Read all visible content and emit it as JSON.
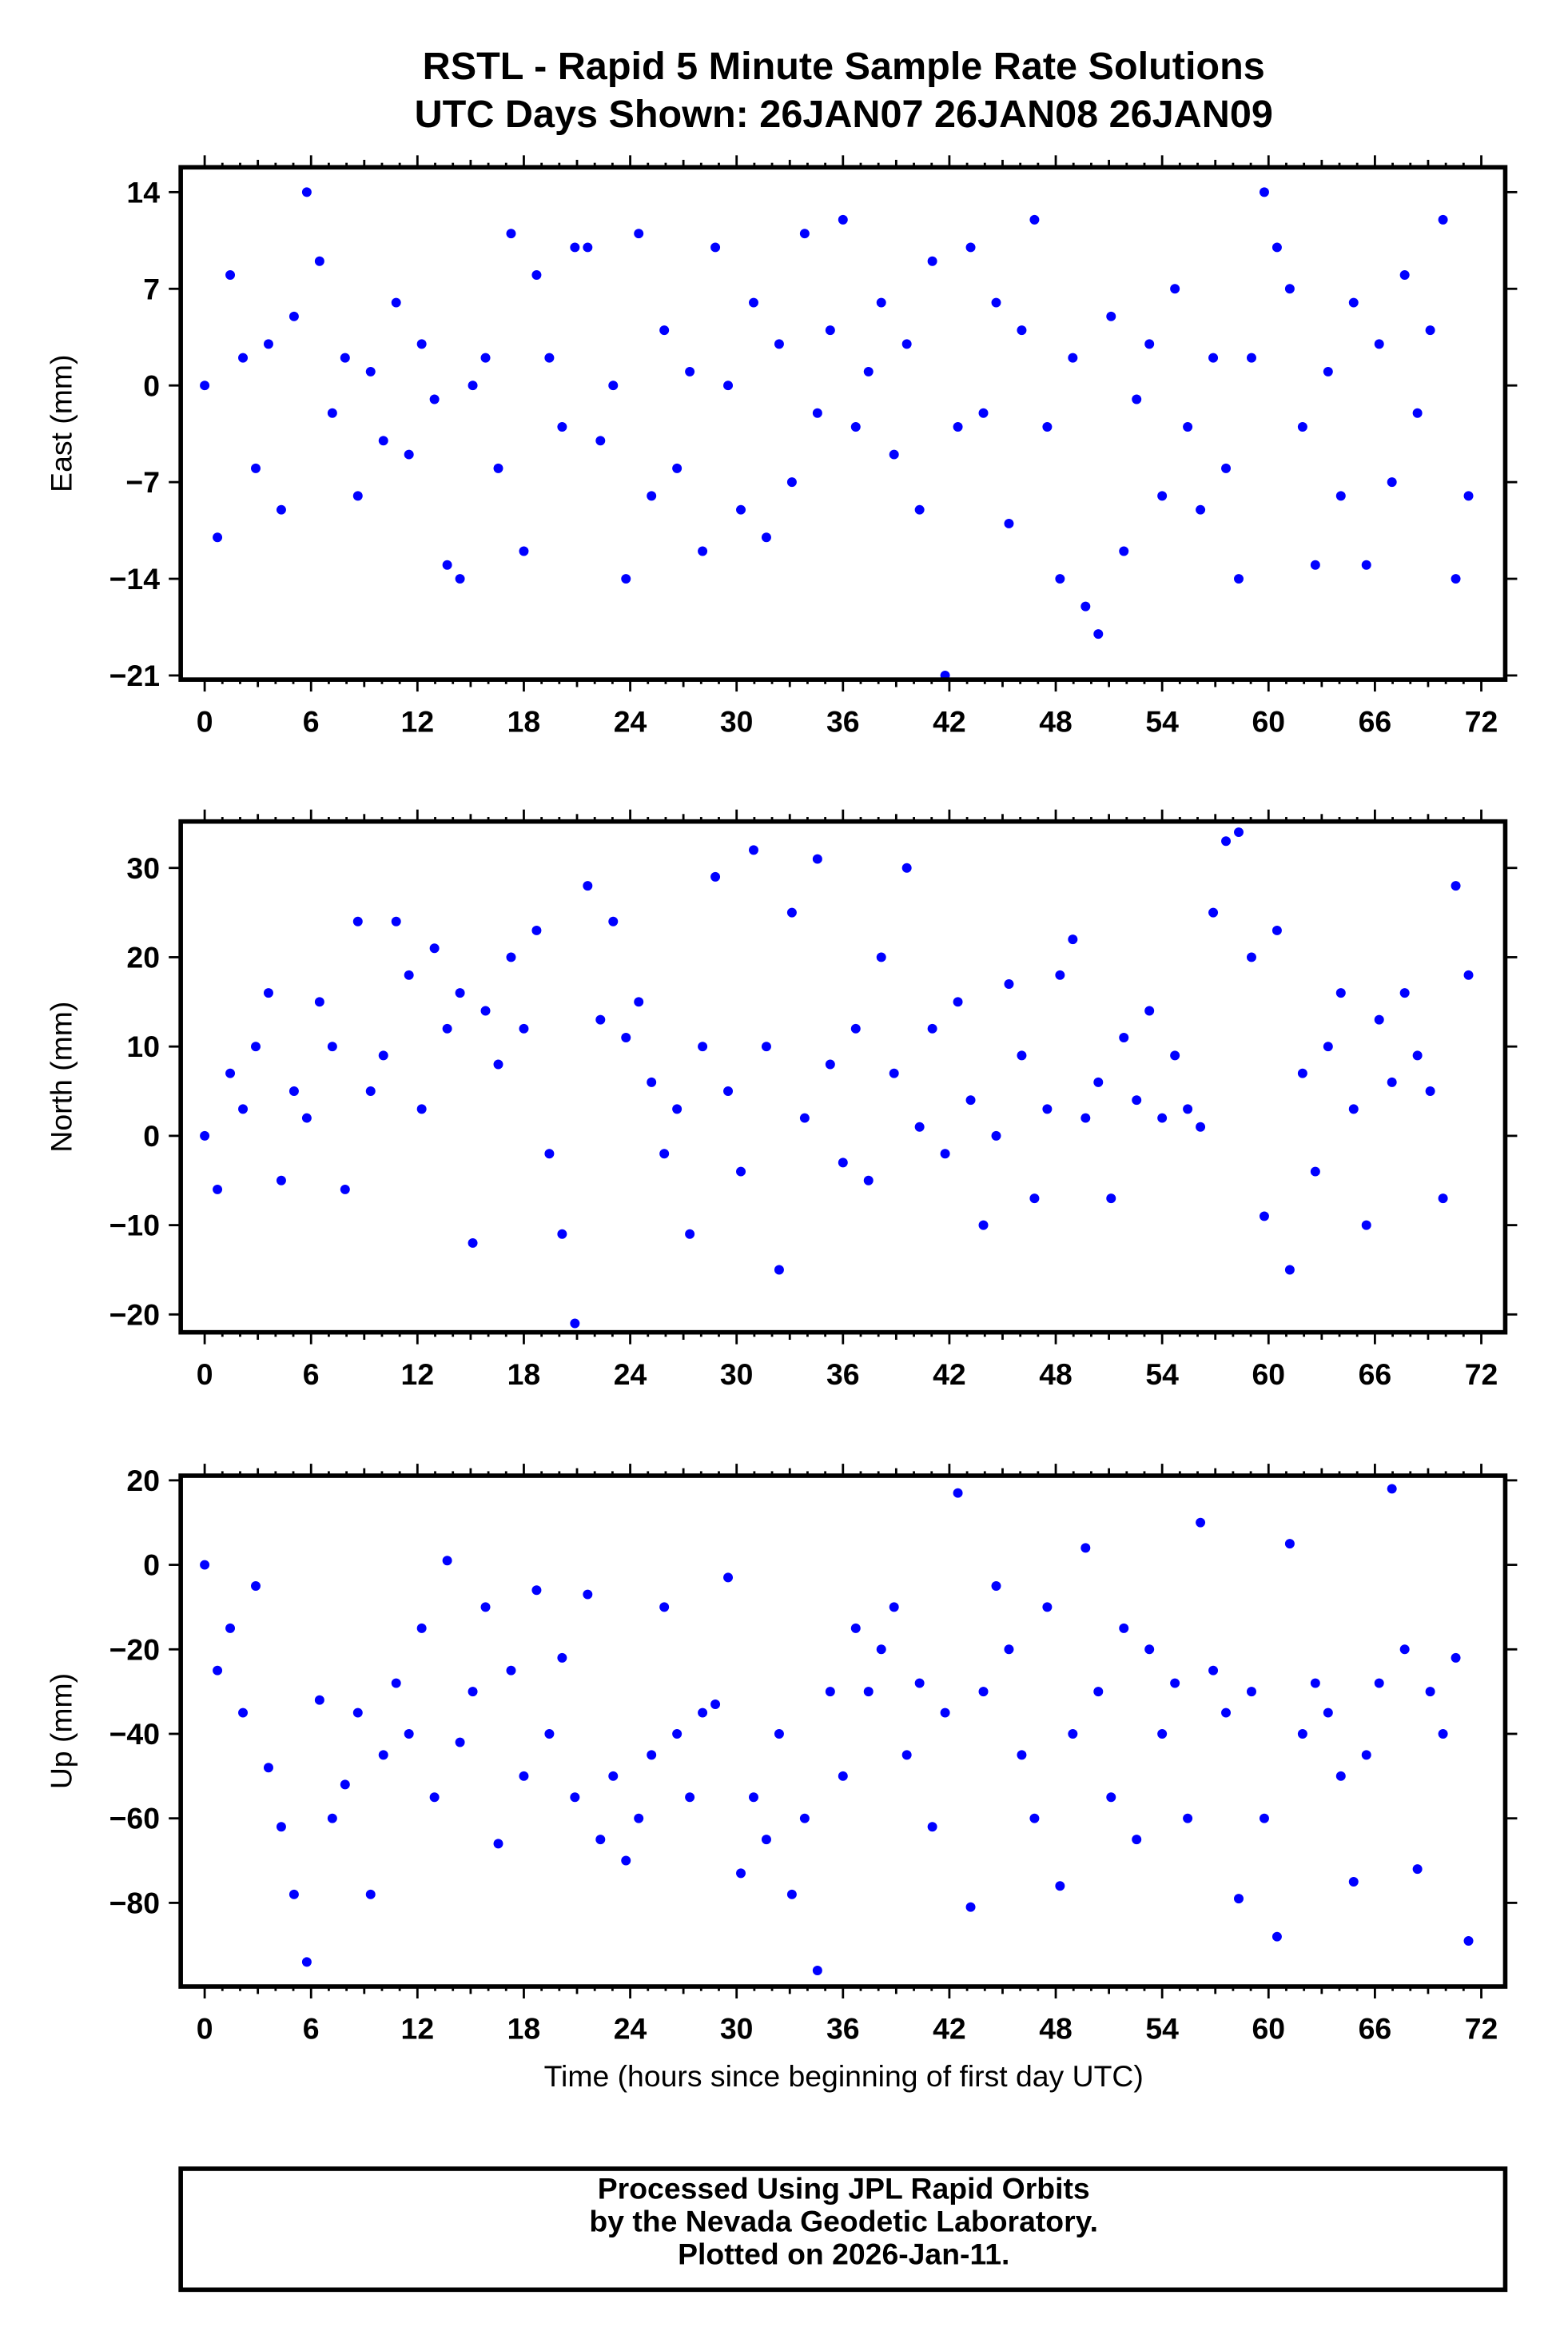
{
  "title": {
    "line1": "RSTL - Rapid 5 Minute Sample Rate Solutions",
    "line2": "UTC Days Shown:  26JAN07 26JAN08 26JAN09"
  },
  "footer": {
    "line1": "Processed Using JPL Rapid Orbits",
    "line2": "by the Nevada Geodetic Laboratory.",
    "line3": "Plotted on 2026-Jan-11."
  },
  "colors": {
    "points": "#0000ff",
    "frame": "#000000"
  },
  "chart_data": [
    {
      "type": "scatter",
      "name": "east",
      "title": "",
      "xlabel": "",
      "ylabel": "East (mm)",
      "xlim": [
        -1.35,
        73.35
      ],
      "ylim": [
        -21.3,
        15.8
      ],
      "xticks": [
        0,
        6,
        12,
        18,
        24,
        30,
        36,
        42,
        48,
        54,
        60,
        66,
        72
      ],
      "yticks": [
        14,
        7,
        0,
        -7,
        -14,
        -21
      ],
      "ytick_labels": [
        "14",
        "7",
        "0",
        "−7",
        "−14",
        "−21"
      ],
      "x_start": 0,
      "x_step": 0.72,
      "y": [
        0,
        -11,
        8,
        2,
        -6,
        3,
        -9,
        5,
        14,
        9,
        -2,
        2,
        -8,
        1,
        -4,
        6,
        -5,
        3,
        -1,
        -13,
        -14,
        0,
        2,
        -6,
        11,
        -12,
        8,
        2,
        -3,
        10,
        10,
        -4,
        0,
        -14,
        11,
        -8,
        4,
        -6,
        1,
        -12,
        10,
        0,
        -9,
        6,
        -11,
        3,
        -7,
        11,
        -2,
        4,
        12,
        -3,
        1,
        6,
        -5,
        3,
        -9,
        9,
        -21,
        -3,
        10,
        -2,
        6,
        -10,
        4,
        12,
        -3,
        -14,
        2,
        -16,
        -18,
        5,
        -12,
        -1,
        3,
        -8,
        7,
        -3,
        -9,
        2,
        -6,
        -14,
        2,
        14,
        10,
        7,
        -3,
        -13,
        1,
        -8,
        6,
        -13,
        3,
        -7,
        8,
        -2,
        4,
        12,
        -14,
        -8
      ]
    },
    {
      "type": "scatter",
      "name": "north",
      "title": "",
      "xlabel": "",
      "ylabel": "North (mm)",
      "xlim": [
        -1.35,
        73.35
      ],
      "ylim": [
        -22,
        35.2
      ],
      "xticks": [
        0,
        6,
        12,
        18,
        24,
        30,
        36,
        42,
        48,
        54,
        60,
        66,
        72
      ],
      "yticks": [
        30,
        20,
        10,
        0,
        -10,
        -20
      ],
      "ytick_labels": [
        "30",
        "20",
        "10",
        "0",
        "−10",
        "−20"
      ],
      "x_start": 0,
      "x_step": 0.72,
      "y": [
        0,
        -6,
        7,
        3,
        10,
        16,
        -5,
        5,
        2,
        15,
        10,
        -6,
        24,
        5,
        9,
        24,
        18,
        3,
        21,
        12,
        16,
        -12,
        14,
        8,
        20,
        12,
        23,
        -2,
        -11,
        -21,
        28,
        13,
        24,
        11,
        15,
        6,
        -2,
        3,
        -11,
        10,
        29,
        5,
        -4,
        32,
        10,
        -15,
        25,
        2,
        31,
        8,
        -3,
        12,
        -5,
        20,
        7,
        30,
        1,
        12,
        -2,
        15,
        4,
        -10,
        0,
        17,
        9,
        -7,
        3,
        18,
        22,
        2,
        6,
        -7,
        11,
        4,
        14,
        2,
        9,
        3,
        1,
        25,
        33,
        34,
        20,
        -9,
        23,
        -15,
        7,
        -4,
        10,
        16,
        3,
        -10,
        13,
        6,
        16,
        9,
        5,
        -7,
        28,
        18
      ]
    },
    {
      "type": "scatter",
      "name": "up",
      "title": "",
      "xlabel": "Time (hours since beginning of first day UTC)",
      "ylabel": "Up (mm)",
      "xlim": [
        -1.35,
        73.35
      ],
      "ylim": [
        -99.8,
        21.1
      ],
      "xticks": [
        0,
        6,
        12,
        18,
        24,
        30,
        36,
        42,
        48,
        54,
        60,
        66,
        72
      ],
      "yticks": [
        20,
        0,
        -20,
        -40,
        -60,
        -80
      ],
      "ytick_labels": [
        "20",
        "0",
        "−20",
        "−40",
        "−60",
        "−80"
      ],
      "x_start": 0,
      "x_step": 0.72,
      "y": [
        0,
        -25,
        -15,
        -35,
        -5,
        -48,
        -62,
        -78,
        -94,
        -32,
        -60,
        -52,
        -35,
        -78,
        -45,
        -28,
        -40,
        -15,
        -55,
        1,
        -42,
        -30,
        -10,
        -66,
        -25,
        -50,
        -6,
        -40,
        -22,
        -55,
        -7,
        -65,
        -50,
        -70,
        -60,
        -45,
        -10,
        -40,
        -55,
        -35,
        -33,
        -3,
        -73,
        -55,
        -65,
        -40,
        -78,
        -60,
        -96,
        -30,
        -50,
        -15,
        -30,
        -20,
        -10,
        -45,
        -28,
        -62,
        -35,
        17,
        -81,
        -30,
        -5,
        -20,
        -45,
        -60,
        -10,
        -76,
        -40,
        4,
        -30,
        -55,
        -15,
        -65,
        -20,
        -40,
        -28,
        -60,
        10,
        -25,
        -35,
        -79,
        -30,
        -60,
        -88,
        5,
        -40,
        -28,
        -35,
        -50,
        -75,
        -45,
        -28,
        18,
        -20,
        -72,
        -30,
        -40,
        -22,
        -89
      ]
    }
  ]
}
